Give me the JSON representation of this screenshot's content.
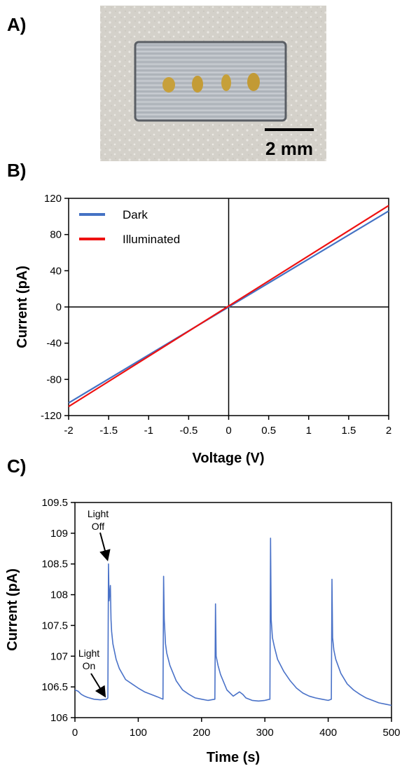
{
  "panels": {
    "a": "A)",
    "b": "B)",
    "c": "C)"
  },
  "photo": {
    "scale_bar_label": "2 mm",
    "description_colors": {
      "background": "#d6d3cc",
      "chip": "#b9bec4",
      "electrode": "#c8a03a"
    }
  },
  "colors": {
    "dark": "#4472c4",
    "illuminated": "#ee1111",
    "trace": "#4a72c8"
  },
  "chart_data": [
    {
      "type": "line",
      "panel": "B)",
      "xlabel": "Voltage (V)",
      "ylabel": "Current (pA)",
      "xlim": [
        -2,
        2
      ],
      "ylim": [
        -120,
        120
      ],
      "xticks": [
        "-2",
        "-1.5",
        "-1",
        "-0.5",
        "0",
        "0.5",
        "1",
        "1.5",
        "2"
      ],
      "yticks": [
        "120",
        "80",
        "40",
        "0",
        "-40",
        "-80",
        "-120"
      ],
      "legend_position": "top-left",
      "series": [
        {
          "name": "Dark",
          "color": "#4472c4",
          "x": [
            -2,
            2
          ],
          "y": [
            -106,
            106
          ]
        },
        {
          "name": "Illuminated",
          "color": "#ee1111",
          "x": [
            -2,
            2
          ],
          "y": [
            -110,
            112
          ]
        }
      ]
    },
    {
      "type": "line",
      "panel": "C)",
      "xlabel": "Time (s)",
      "ylabel": "Current (pA)",
      "xlim": [
        0,
        500
      ],
      "ylim": [
        106,
        109.5
      ],
      "xticks": [
        "0",
        "100",
        "200",
        "300",
        "400",
        "500"
      ],
      "yticks": [
        "109.5",
        "109",
        "108.5",
        "108",
        "107.5",
        "107",
        "106.5",
        "106"
      ],
      "annotations": [
        {
          "lines": [
            "Light",
            "Off"
          ],
          "x": 53,
          "y": 108.5
        },
        {
          "lines": [
            "Light",
            "On"
          ],
          "x": 50,
          "y": 106.3
        }
      ],
      "series": [
        {
          "name": "",
          "color": "#4a72c8",
          "x": [
            0,
            5,
            10,
            15,
            20,
            30,
            40,
            50,
            52,
            53,
            54,
            56,
            57,
            58,
            60,
            65,
            70,
            80,
            90,
            100,
            110,
            120,
            130,
            139,
            140,
            141,
            143,
            145,
            150,
            160,
            170,
            180,
            190,
            200,
            210,
            221,
            222,
            223,
            226,
            230,
            240,
            250,
            260,
            265,
            270,
            280,
            290,
            300,
            308,
            309,
            310,
            312,
            315,
            320,
            330,
            340,
            350,
            360,
            370,
            380,
            390,
            400,
            405,
            406,
            407,
            409,
            412,
            420,
            430,
            440,
            450,
            460,
            470,
            480,
            490,
            500
          ],
          "y": [
            106.45,
            106.43,
            106.38,
            106.35,
            106.33,
            106.3,
            106.29,
            106.3,
            106.32,
            108.5,
            107.9,
            108.15,
            107.6,
            107.4,
            107.2,
            106.95,
            106.8,
            106.62,
            106.55,
            106.48,
            106.42,
            106.38,
            106.34,
            106.3,
            108.3,
            107.6,
            107.2,
            107.05,
            106.85,
            106.6,
            106.45,
            106.38,
            106.32,
            106.3,
            106.28,
            106.3,
            107.85,
            107.0,
            106.85,
            106.7,
            106.45,
            106.35,
            106.42,
            106.38,
            106.32,
            106.28,
            106.27,
            106.28,
            106.3,
            108.92,
            107.6,
            107.3,
            107.15,
            106.95,
            106.75,
            106.6,
            106.48,
            106.4,
            106.35,
            106.32,
            106.3,
            106.28,
            106.3,
            108.25,
            107.3,
            107.1,
            106.95,
            106.72,
            106.55,
            106.45,
            106.38,
            106.32,
            106.28,
            106.24,
            106.22,
            106.2
          ]
        }
      ]
    }
  ]
}
